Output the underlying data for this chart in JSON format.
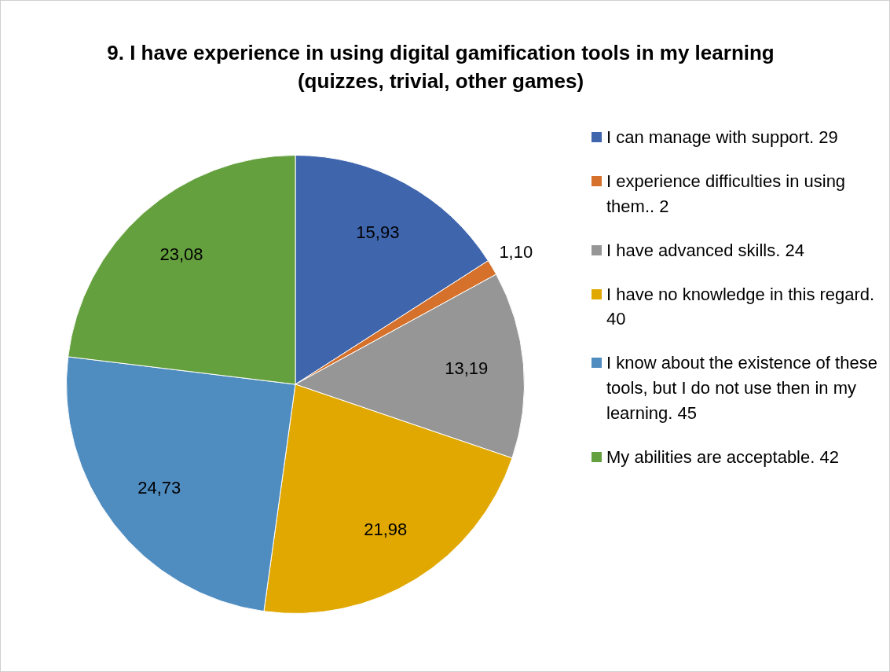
{
  "chart_data": {
    "type": "pie",
    "title": "9. I have experience in using digital gamification tools in my learning (quizzes, trivial, other games)",
    "categories": [
      "I can manage with support.  29",
      "I experience difficulties in using them..  2",
      "I have advanced skills.  24",
      "I have no knowledge in this regard.  40",
      "I know about the existence of these tools, but I do not use then in my learning.  45",
      "My abilities are acceptable.  42"
    ],
    "values": [
      15.93,
      1.1,
      13.19,
      21.98,
      24.73,
      23.08
    ],
    "value_labels": [
      "15,93",
      "1,10",
      "13,19",
      "21,98",
      "24,73",
      "23,08"
    ],
    "colors": [
      "#3f65ad",
      "#d5712a",
      "#969696",
      "#e0a800",
      "#4f8cc0",
      "#65a03f"
    ],
    "legend": "right"
  }
}
